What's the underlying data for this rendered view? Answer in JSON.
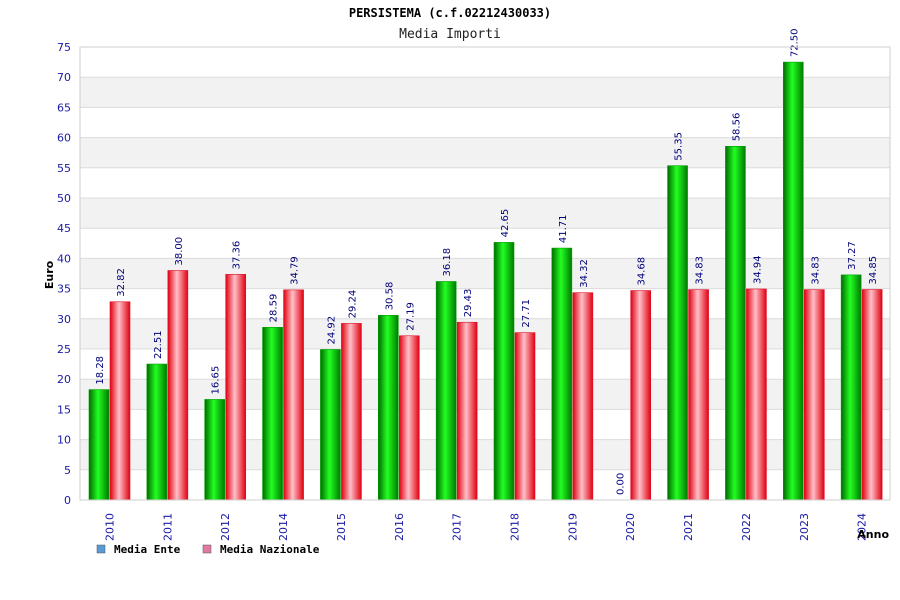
{
  "chart_data": {
    "type": "bar",
    "title": "PERSISTEMA (c.f.02212430033)",
    "subtitle": "Media Importi",
    "ylabel": "Euro",
    "xlabel": "Anno",
    "ylim": [
      0,
      75
    ],
    "ytick_step": 5,
    "grid": true,
    "legend_position": "bottom-left",
    "categories": [
      "2010",
      "2011",
      "2012",
      "2014",
      "2015",
      "2016",
      "2017",
      "2018",
      "2019",
      "2020",
      "2021",
      "2022",
      "2023",
      "2024"
    ],
    "series": [
      {
        "name": "Media Ente",
        "legend_color": "#5b9bd5",
        "bar_color": "#00b000",
        "values": [
          18.28,
          22.51,
          16.65,
          28.59,
          24.92,
          30.58,
          36.18,
          42.65,
          41.71,
          0.0,
          55.35,
          58.56,
          72.5,
          37.27
        ],
        "labels": [
          "18.28",
          "22.51",
          "16.65",
          "28.59",
          "24.92",
          "30.58",
          "36.18",
          "42.65",
          "41.71",
          "0.00",
          "55.35",
          "58.56",
          "72.50",
          "37.27"
        ]
      },
      {
        "name": "Media Nazionale",
        "legend_color": "#e07aa0",
        "bar_color": "#e8202a",
        "values": [
          32.82,
          38.0,
          37.36,
          34.79,
          29.24,
          27.19,
          29.43,
          27.71,
          34.32,
          34.68,
          34.83,
          34.94,
          34.83,
          34.85
        ],
        "labels": [
          "32.82",
          "38.00",
          "37.36",
          "34.79",
          "29.24",
          "27.19",
          "29.43",
          "27.71",
          "34.32",
          "34.68",
          "34.83",
          "34.94",
          "34.83",
          "34.85"
        ]
      }
    ]
  }
}
